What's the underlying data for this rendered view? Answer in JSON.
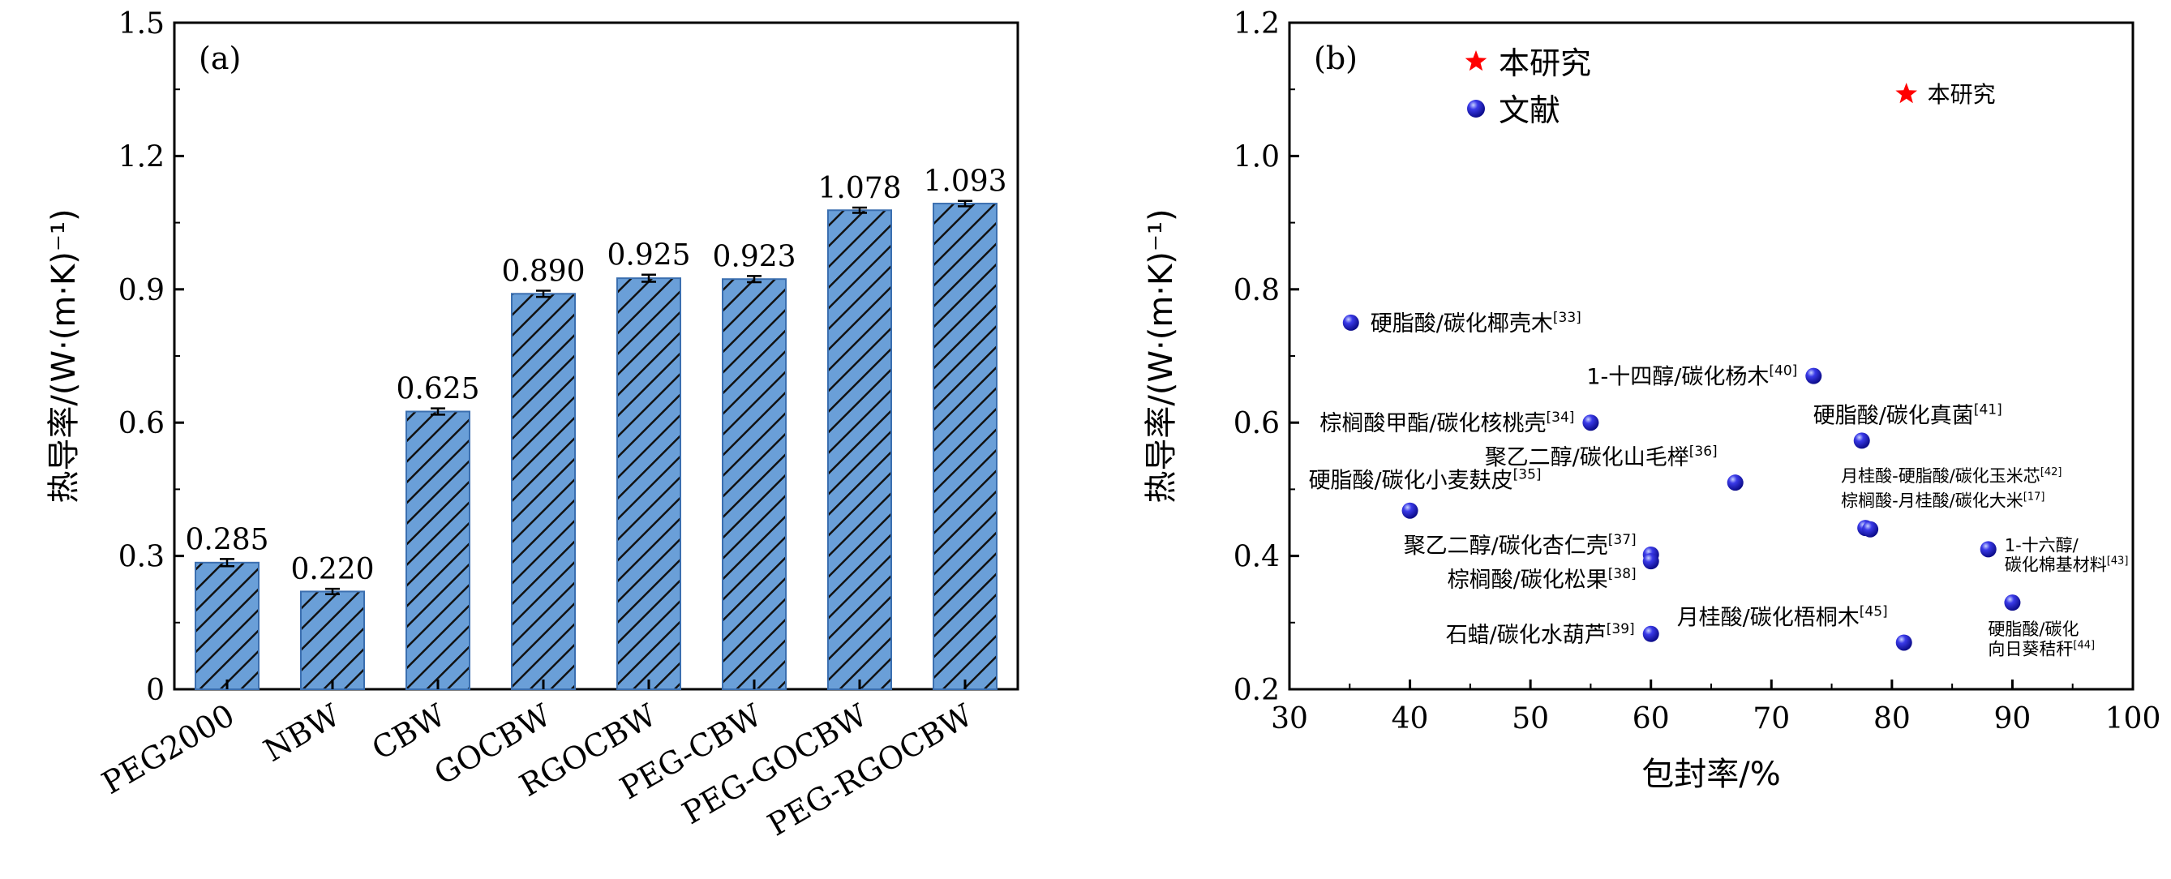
{
  "chart_data": [
    {
      "type": "bar",
      "panel_label": "(a)",
      "ylabel": "热导率/(W·(m·K)⁻¹)",
      "xlabel": "",
      "ylim": [
        0,
        1.5
      ],
      "yticks": [
        "0",
        "0.3",
        "0.6",
        "0.9",
        "1.2",
        "1.5"
      ],
      "categories": [
        "PEG2000",
        "NBW",
        "CBW",
        "GOCBW",
        "RGOCBW",
        "PEG-CBW",
        "PEG-GOCBW",
        "PEG-RGOCBW"
      ],
      "values": [
        0.285,
        0.22,
        0.625,
        0.89,
        0.925,
        0.923,
        1.078,
        1.093
      ],
      "value_labels": [
        "0.285",
        "0.220",
        "0.625",
        "0.890",
        "0.925",
        "0.923",
        "1.078",
        "1.093"
      ],
      "errors": [
        0.008,
        0.006,
        0.007,
        0.007,
        0.008,
        0.007,
        0.006,
        0.006
      ],
      "bar_color": "#6a9fd8",
      "hatch": "diagonal"
    },
    {
      "type": "scatter",
      "panel_label": "(b)",
      "xlabel": "包封率/%",
      "ylabel": "热导率/(W·(m·K)⁻¹)",
      "xlim": [
        30,
        100
      ],
      "ylim": [
        0.2,
        1.2
      ],
      "xticks": [
        "30",
        "40",
        "50",
        "60",
        "70",
        "80",
        "90",
        "100"
      ],
      "yticks": [
        "0.2",
        "0.4",
        "0.6",
        "0.8",
        "1.0",
        "1.2"
      ],
      "legend": [
        {
          "name": "本研究",
          "marker": "star",
          "color": "#ff0000"
        },
        {
          "name": "文献",
          "marker": "sphere",
          "color": "#1f1fd6"
        }
      ],
      "series": [
        {
          "name": "本研究",
          "marker": "star",
          "color": "#ff0000",
          "points": [
            {
              "x": 81.2,
              "y": 1.093,
              "label": "本研究",
              "ref": ""
            }
          ]
        },
        {
          "name": "文献",
          "marker": "sphere",
          "color": "#1f1fd6",
          "points": [
            {
              "x": 35.1,
              "y": 0.75,
              "label": "硬脂酸/碳化椰壳木",
              "ref": "[33]"
            },
            {
              "x": 55.0,
              "y": 0.6,
              "label": "棕榈酸甲酯/碳化核桃壳",
              "ref": "[34]"
            },
            {
              "x": 40.0,
              "y": 0.468,
              "label": "硬脂酸/碳化小麦麸皮",
              "ref": "[35]"
            },
            {
              "x": 67.0,
              "y": 0.51,
              "label": "聚乙二醇/碳化山毛榉",
              "ref": "[36]"
            },
            {
              "x": 60.0,
              "y": 0.402,
              "label": "聚乙二醇/碳化杏仁壳",
              "ref": "[37]"
            },
            {
              "x": 60.0,
              "y": 0.392,
              "label": "棕榈酸/碳化松果",
              "ref": "[38]"
            },
            {
              "x": 60.0,
              "y": 0.283,
              "label": "石蜡/碳化水葫芦",
              "ref": "[39]"
            },
            {
              "x": 73.5,
              "y": 0.67,
              "label": "1-十四醇/碳化杨木",
              "ref": "[40]"
            },
            {
              "x": 77.5,
              "y": 0.573,
              "label": "硬脂酸/碳化真菌",
              "ref": "[41]"
            },
            {
              "x": 77.8,
              "y": 0.442,
              "label": "月桂酸-硬脂酸/碳化玉米芯",
              "ref": "[42]"
            },
            {
              "x": 88.0,
              "y": 0.41,
              "label": "1-十六醇/碳化棉基材料",
              "ref": "[43]"
            },
            {
              "x": 90.0,
              "y": 0.33,
              "label": "硬脂酸/碳化向日葵秸秆",
              "ref": "[44]"
            },
            {
              "x": 81.0,
              "y": 0.27,
              "label": "月桂酸/碳化梧桐木",
              "ref": "[45]"
            },
            {
              "x": 78.2,
              "y": 0.44,
              "label": "棕榈酸-月桂酸/碳化大米",
              "ref": "[17]"
            }
          ]
        }
      ]
    }
  ]
}
